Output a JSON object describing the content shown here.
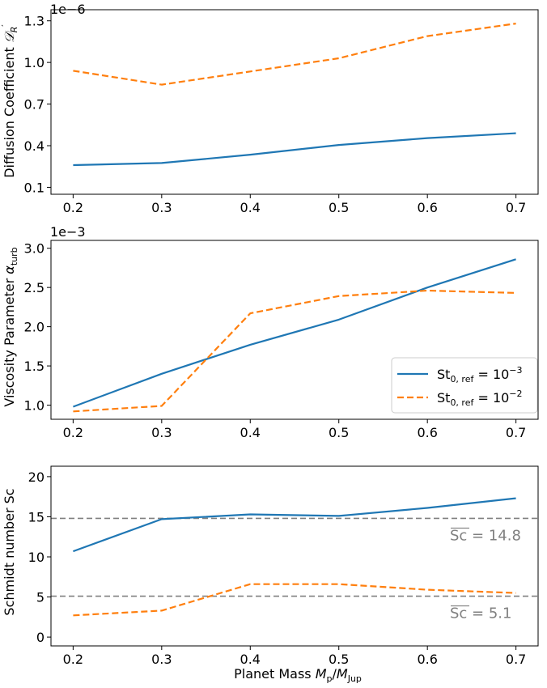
{
  "chart_data": [
    {
      "type": "line",
      "xlabel": "",
      "ylabel": "Diffusion Coefficient 𝒟_R′",
      "multiplier": "1e−6",
      "x": [
        0.2,
        0.3,
        0.4,
        0.5,
        0.6,
        0.7
      ],
      "xticks": [
        "0.2",
        "0.3",
        "0.4",
        "0.5",
        "0.6",
        "0.7"
      ],
      "ylim": [
        0.05,
        1.38
      ],
      "yticks": [
        0.1,
        0.4,
        0.7,
        1.0,
        1.3
      ],
      "ytick_labels": [
        "0.1",
        "0.4",
        "0.7",
        "1.0",
        "1.3"
      ],
      "series": [
        {
          "name": "St_0,ref = 10^−3",
          "color": "#1f77b4",
          "dash": "solid",
          "values": [
            0.26,
            0.275,
            0.335,
            0.405,
            0.455,
            0.49
          ]
        },
        {
          "name": "St_0,ref = 10^−2",
          "color": "#ff7f0e",
          "dash": "dashed",
          "values": [
            0.94,
            0.84,
            0.935,
            1.03,
            1.19,
            1.28
          ]
        }
      ]
    },
    {
      "type": "line",
      "xlabel": "",
      "ylabel": "Viscosity Parameter α_turb",
      "multiplier": "1e−3",
      "x": [
        0.2,
        0.3,
        0.4,
        0.5,
        0.6,
        0.7
      ],
      "xticks": [
        "0.2",
        "0.3",
        "0.4",
        "0.5",
        "0.6",
        "0.7"
      ],
      "ylim": [
        0.82,
        3.1
      ],
      "yticks": [
        1.0,
        1.5,
        2.0,
        2.5,
        3.0
      ],
      "ytick_labels": [
        "1.0",
        "1.5",
        "2.0",
        "2.5",
        "3.0"
      ],
      "legend": "lower-right",
      "series": [
        {
          "name": "St_0,ref = 10^−3",
          "color": "#1f77b4",
          "dash": "solid",
          "values": [
            0.98,
            1.4,
            1.77,
            2.09,
            2.5,
            2.86
          ]
        },
        {
          "name": "St_0,ref = 10^−2",
          "color": "#ff7f0e",
          "dash": "dashed",
          "values": [
            0.92,
            0.99,
            2.17,
            2.39,
            2.46,
            2.43
          ]
        }
      ]
    },
    {
      "type": "line",
      "xlabel": "Planet Mass M_p/M_Jup",
      "ylabel": "Schmidt number Sc",
      "x": [
        0.2,
        0.3,
        0.4,
        0.5,
        0.6,
        0.7
      ],
      "xticks": [
        "0.2",
        "0.3",
        "0.4",
        "0.5",
        "0.6",
        "0.7"
      ],
      "ylim": [
        -1.1,
        21.3
      ],
      "yticks": [
        0,
        5,
        10,
        15,
        20
      ],
      "ytick_labels": [
        "0",
        "5",
        "10",
        "15",
        "20"
      ],
      "series": [
        {
          "name": "St_0,ref = 10^−3",
          "color": "#1f77b4",
          "dash": "solid",
          "values": [
            10.7,
            14.7,
            15.3,
            15.1,
            16.1,
            17.3
          ]
        },
        {
          "name": "St_0,ref = 10^−2",
          "color": "#ff7f0e",
          "dash": "dashed",
          "values": [
            2.7,
            3.3,
            6.6,
            6.6,
            5.9,
            5.5
          ]
        }
      ],
      "reference_lines": [
        {
          "value": 14.8,
          "label": "= 14.8",
          "color": "#808080"
        },
        {
          "value": 5.1,
          "label": "= 5.1",
          "color": "#808080"
        }
      ]
    }
  ]
}
